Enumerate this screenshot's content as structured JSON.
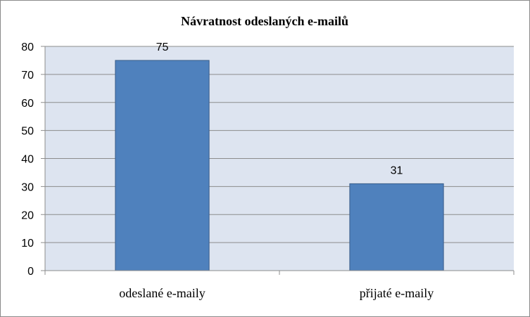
{
  "chart_data": {
    "type": "bar",
    "title": "Návratnost odeslaných e-mailů",
    "categories": [
      "odeslané e-maily",
      "přijaté e-maily"
    ],
    "values": [
      75,
      31
    ],
    "data_labels": [
      "75",
      "31"
    ],
    "ylim": [
      0,
      80
    ],
    "yticks": [
      0,
      10,
      20,
      30,
      40,
      50,
      60,
      70,
      80
    ],
    "xlabel": "",
    "ylabel": "",
    "grid": true,
    "legend": "none",
    "bar_color": "#4f81bd",
    "bar_border_color": "#385d8a",
    "plot_background": "#dde4f0"
  }
}
